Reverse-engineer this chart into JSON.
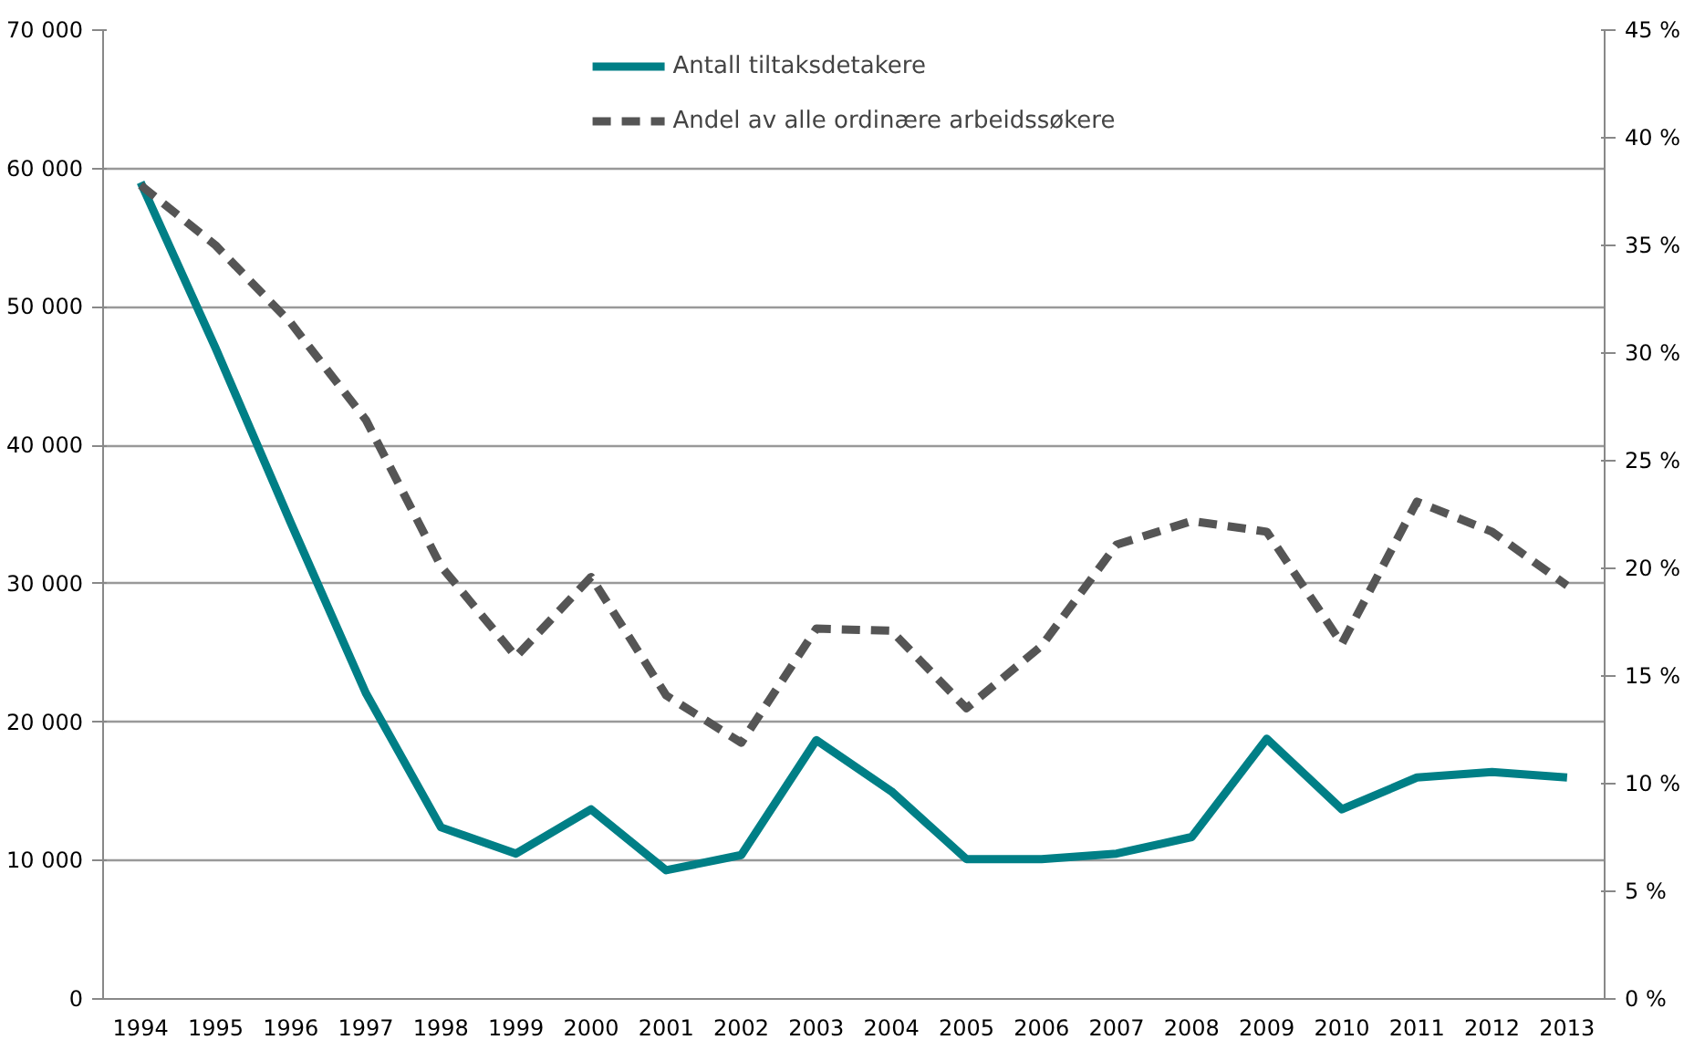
{
  "chart_data": {
    "type": "line",
    "categories": [
      "1994",
      "1995",
      "1996",
      "1997",
      "1998",
      "1999",
      "2000",
      "2001",
      "2002",
      "2003",
      "2004",
      "2005",
      "2006",
      "2007",
      "2008",
      "2009",
      "2010",
      "2011",
      "2012",
      "2013"
    ],
    "series": [
      {
        "name": "Antall tiltaksdetakere",
        "color": "#007f86",
        "line_style": "solid",
        "values": [
          59000,
          47000,
          34400,
          22100,
          12400,
          10500,
          13700,
          9300,
          10400,
          18700,
          15000,
          10100,
          10100,
          10500,
          11700,
          18800,
          13700,
          16000,
          16400,
          16000
        ]
      },
      {
        "name": "Andel av alle ordinære arbeidssøkere",
        "color": "#555555",
        "line_style": "dashed",
        "axis": "y2",
        "values": [
          37.8,
          35,
          31.4,
          26.9,
          20.1,
          15.9,
          19.6,
          14.1,
          11.9,
          17.2,
          17.1,
          13.5,
          16.4,
          21.1,
          22.2,
          21.7,
          16.5,
          23.1,
          21.7,
          19.2
        ]
      }
    ],
    "ylim": [
      0,
      70000
    ],
    "yticks": [
      {
        "value": 0,
        "label": "0"
      },
      {
        "value": 10000,
        "label": "10 000"
      },
      {
        "value": 20000,
        "label": "20 000"
      },
      {
        "value": 30000,
        "label": "30 000"
      },
      {
        "value": 40000,
        "label": "40 000"
      },
      {
        "value": 50000,
        "label": "50 000"
      },
      {
        "value": 60000,
        "label": "60 000"
      },
      {
        "value": 70000,
        "label": "70 000"
      }
    ],
    "y2lim": [
      0,
      45
    ],
    "y2ticks": [
      {
        "value": 0,
        "label": "0 %"
      },
      {
        "value": 5,
        "label": "5 %"
      },
      {
        "value": 10,
        "label": "10 %"
      },
      {
        "value": 15,
        "label": "15 %"
      },
      {
        "value": 20,
        "label": "20 %"
      },
      {
        "value": 25,
        "label": "25 %"
      },
      {
        "value": 30,
        "label": "30 %"
      },
      {
        "value": 35,
        "label": "35 %"
      },
      {
        "value": 40,
        "label": "40 %"
      },
      {
        "value": 45,
        "label": "45 %"
      }
    ],
    "grid": "y",
    "legend": "top",
    "marker": "none"
  }
}
